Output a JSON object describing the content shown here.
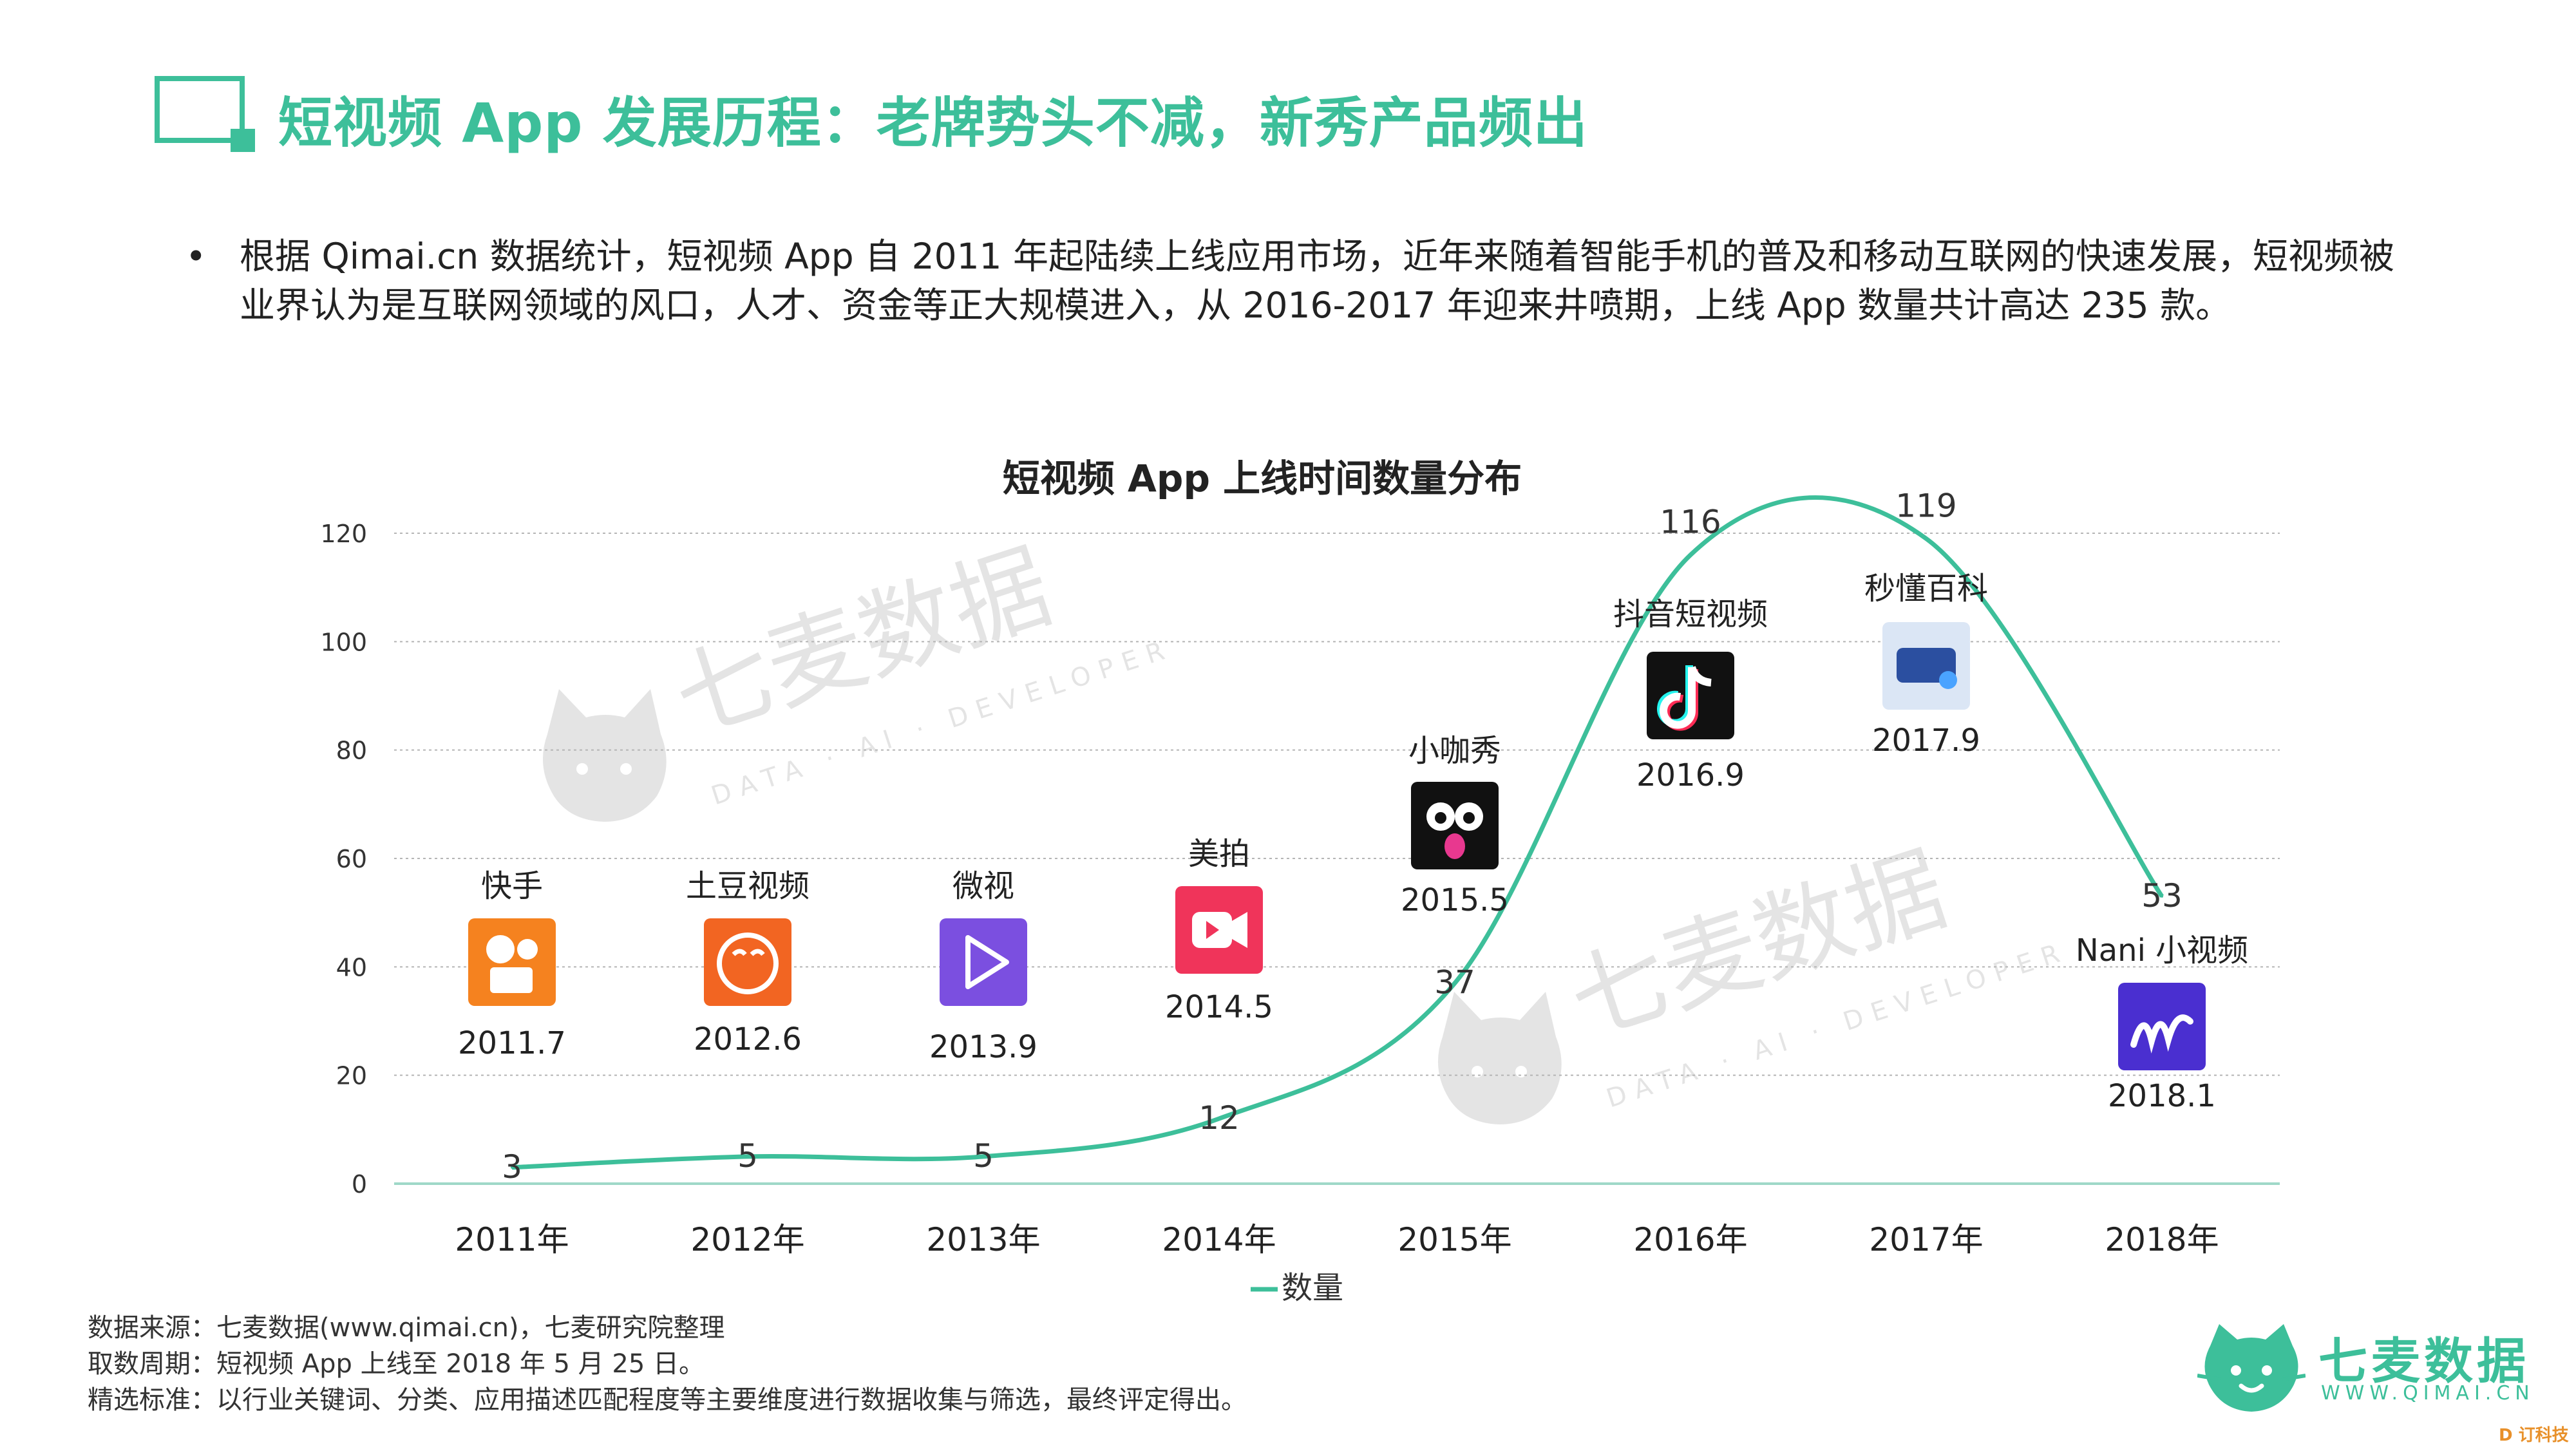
{
  "page": {
    "title": "短视频 App 发展历程：老牌势头不减，新秀产品频出",
    "bullet": "根据 Qimai.cn 数据统计，短视频 App 自 2011 年起陆续上线应用市场，近年来随着智能手机的普及和移动互联网的快速发展，短视频被业界认为是互联网领域的风口，人才、资金等正大规模进入，从 2016-2017 年迎来井喷期，上线 App 数量共计高达 235 款。"
  },
  "watermark": {
    "name": "七麦数据",
    "tagline": "DATA · AI · DEVELOPER"
  },
  "chart_data": {
    "type": "line",
    "title": "短视频 App 上线时间数量分布",
    "categories": [
      "2011年",
      "2012年",
      "2013年",
      "2014年",
      "2015年",
      "2016年",
      "2017年",
      "2018年"
    ],
    "series": [
      {
        "name": "数量",
        "values": [
          3,
          5,
          5,
          12,
          37,
          116,
          119,
          53
        ],
        "color": "#3dbf9a"
      }
    ],
    "ylim": [
      0,
      120
    ],
    "yticks": [
      0,
      20,
      40,
      60,
      80,
      100,
      120
    ],
    "grid": true,
    "legend": "bottom-center",
    "annotations": [
      {
        "category": "2011年",
        "app": "快手",
        "date": "2011.7",
        "icon": "kuaishou-icon",
        "color": "#f5821f"
      },
      {
        "category": "2012年",
        "app": "土豆视频",
        "date": "2012.6",
        "icon": "tudou-icon",
        "color": "#f26522"
      },
      {
        "category": "2013年",
        "app": "微视",
        "date": "2013.9",
        "icon": "weishi-icon",
        "color": "#7b4fe0"
      },
      {
        "category": "2014年",
        "app": "美拍",
        "date": "2014.5",
        "icon": "meipai-icon",
        "color": "#f0345a"
      },
      {
        "category": "2015年",
        "app": "小咖秀",
        "date": "2015.5",
        "icon": "xiaokaxiu-icon",
        "color": "#111111"
      },
      {
        "category": "2016年",
        "app": "抖音短视频",
        "date": "2016.9",
        "icon": "douyin-icon",
        "color": "#111111"
      },
      {
        "category": "2017年",
        "app": "秒懂百科",
        "date": "2017.9",
        "icon": "miaodong-icon",
        "color": "#dbe6f5"
      },
      {
        "category": "2018年",
        "app": "Nani 小视频",
        "date": "2018.1",
        "icon": "nani-icon",
        "color": "#4a2fd0"
      }
    ]
  },
  "footer": {
    "source": "数据来源：七麦数据(www.qimai.cn)，七麦研究院整理",
    "period": "取数周期：短视频 App 上线至 2018 年 5 月 25 日。",
    "criteria": "精选标准：以行业关键词、分类、应用描述匹配程度等主要维度进行数据收集与筛选，最终评定得出。"
  },
  "brand": {
    "name": "七麦数据",
    "url": "WWW.QIMAI.CN",
    "accent": "#3dbf9a",
    "corner_mark": "D 订科技"
  }
}
